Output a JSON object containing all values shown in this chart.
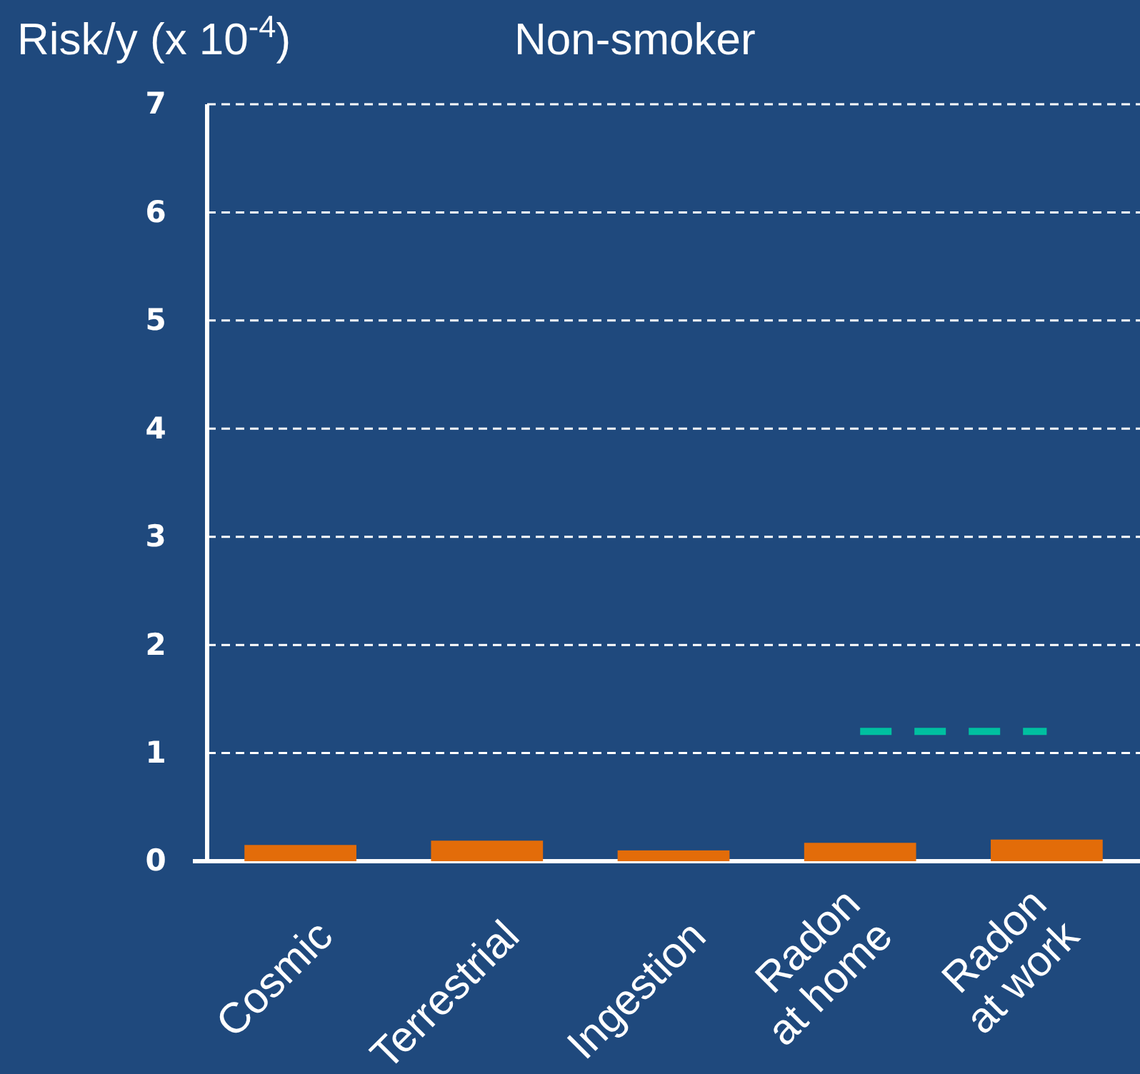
{
  "chart_data": {
    "type": "bar",
    "title": "Non-smoker",
    "ylabel": "Risk/y (x 10$^{-4}$)",
    "categories": [
      "Cosmic",
      "Terrestrial",
      "Ingestion",
      "Radon\nat home",
      "Radon\nat work"
    ],
    "series": [
      {
        "color": "#e36c09",
        "values": [
          0.15,
          0.19,
          0.1,
          0.17,
          0.2
        ]
      },
      {
        "type": "line",
        "color": "#00c0a0",
        "line_style": "dashed",
        "values": [
          null,
          null,
          null,
          1.2,
          1.2
        ]
      }
    ],
    "ylim": [
      0,
      7
    ],
    "yticks": [
      0,
      1,
      2,
      3,
      4,
      5,
      6,
      7
    ],
    "grid": "y"
  }
}
